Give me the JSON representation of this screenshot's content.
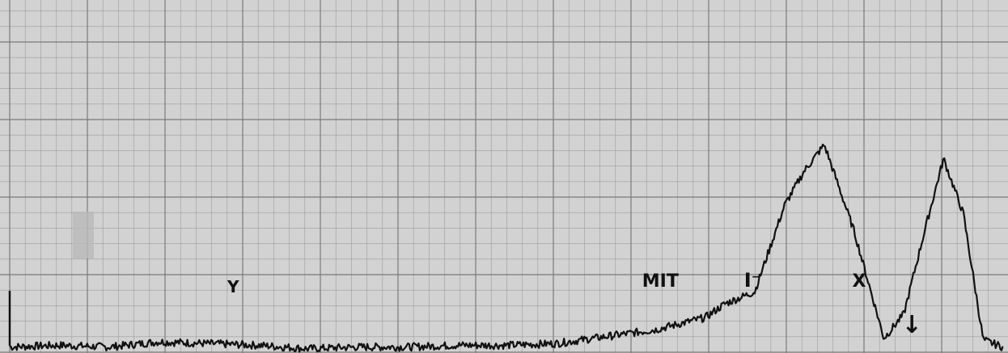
{
  "chart_data": {
    "type": "line",
    "title": "",
    "xlabel": "",
    "ylabel": "",
    "grid": true,
    "series": [
      {
        "x": [
          0,
          5,
          10,
          15,
          20,
          25,
          30,
          35,
          40,
          45,
          50,
          55,
          60,
          65,
          70,
          72,
          75,
          78,
          80,
          82,
          85,
          88,
          90,
          92,
          94,
          96,
          98,
          100
        ],
        "y": [
          0.3,
          0.4,
          0.3,
          0.6,
          0.5,
          0.4,
          0.2,
          0.3,
          0.3,
          0.4,
          0.4,
          0.5,
          0.9,
          1.3,
          2.0,
          2.8,
          3.5,
          8.5,
          10.5,
          12.0,
          7.0,
          0.8,
          2.2,
          6.8,
          11.2,
          8.0,
          0.7,
          0.3
        ]
      }
    ],
    "annotations": [
      {
        "text": "Y",
        "x": 22.5
      },
      {
        "text": "MIT",
        "x": 65.5
      },
      {
        "text": "I⁻",
        "x": 74.8
      },
      {
        "text": "X",
        "x": 85.5
      },
      {
        "text": "↓",
        "x": 90.8
      }
    ],
    "xlim": [
      0,
      100
    ],
    "ylim": [
      0,
      20
    ]
  }
}
